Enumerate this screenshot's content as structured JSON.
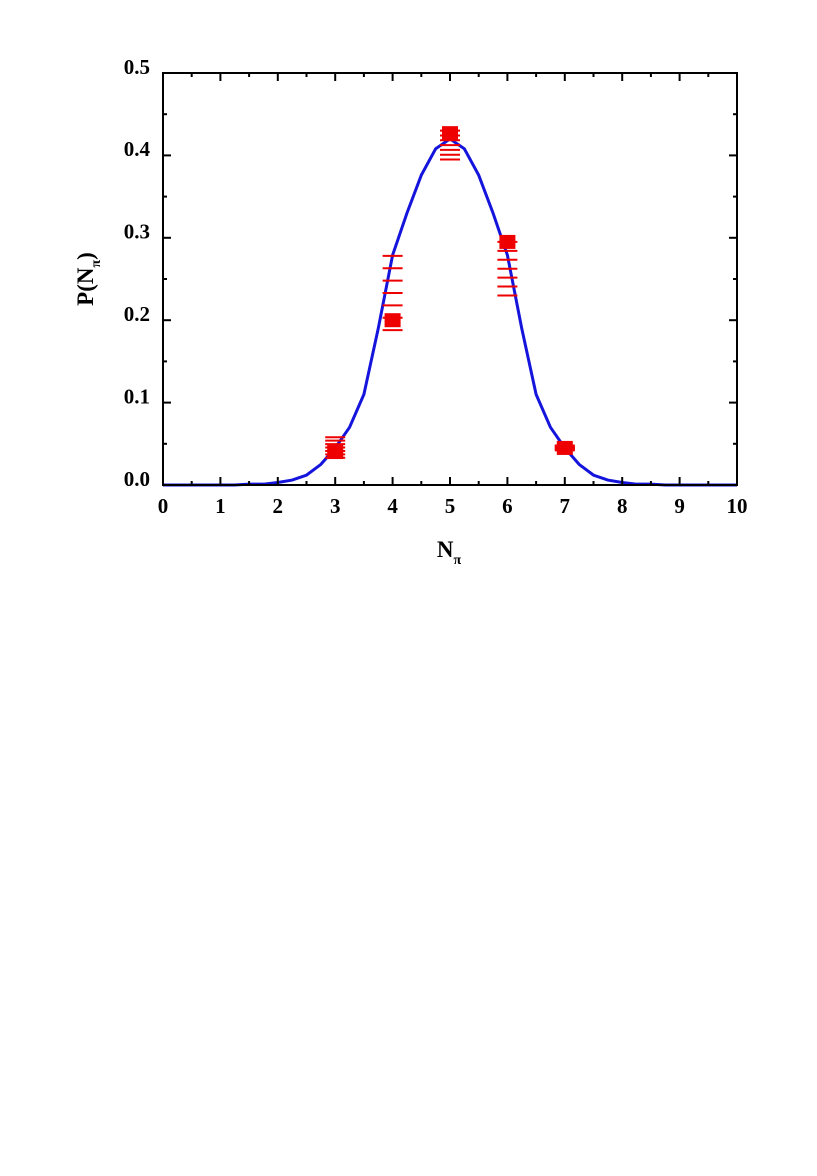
{
  "chart_data": {
    "type": "scatter",
    "xlabel": {
      "main": "N",
      "sub": "π"
    },
    "ylabel": {
      "main": "P(N",
      "sub": "π",
      "close": ")"
    },
    "xlim": [
      0,
      10
    ],
    "ylim": [
      0,
      0.5
    ],
    "xticks": [
      0,
      1,
      2,
      3,
      4,
      5,
      6,
      7,
      8,
      9,
      10
    ],
    "yticks": [
      {
        "value": 0,
        "label": "0.0"
      },
      0.1,
      0.2,
      0.3,
      0.4,
      0.5
    ],
    "xminorticks": [
      0.5,
      1.5,
      2.5,
      3.5,
      4.5,
      5.5,
      6.5,
      7.5,
      8.5,
      9.5
    ],
    "yminorticks": [
      0.05,
      0.15,
      0.25,
      0.35,
      0.45
    ],
    "points": {
      "color": "#ee0000",
      "x": [
        3,
        4,
        5,
        6,
        7
      ],
      "values": [
        0.04,
        0.2,
        0.427,
        0.295,
        0.045
      ],
      "err_low": [
        0.007,
        0.012,
        0.032,
        0.065,
        0.003
      ],
      "err_high": [
        0.018,
        0.078,
        0.003,
        0.0,
        0.003
      ]
    },
    "curve": {
      "color": "#1414dc",
      "x": [
        0,
        0.25,
        0.5,
        0.75,
        1,
        1.25,
        1.5,
        1.75,
        2,
        2.25,
        2.5,
        2.75,
        3,
        3.25,
        3.5,
        3.75,
        4,
        4.25,
        4.5,
        4.75,
        5,
        5.25,
        5.5,
        5.75,
        6,
        6.25,
        6.5,
        6.75,
        7,
        7.25,
        7.5,
        7.75,
        8,
        8.25,
        8.5,
        8.75,
        9,
        9.25,
        9.5,
        9.75,
        10
      ],
      "values": [
        0,
        0,
        0,
        0,
        0,
        0,
        0.001,
        0.001,
        0.003,
        0.006,
        0.012,
        0.025,
        0.045,
        0.07,
        0.11,
        0.19,
        0.279,
        0.33,
        0.376,
        0.408,
        0.42,
        0.408,
        0.376,
        0.33,
        0.279,
        0.19,
        0.11,
        0.07,
        0.045,
        0.025,
        0.012,
        0.006,
        0.003,
        0.001,
        0.001,
        0,
        0,
        0,
        0,
        0,
        0
      ]
    }
  }
}
